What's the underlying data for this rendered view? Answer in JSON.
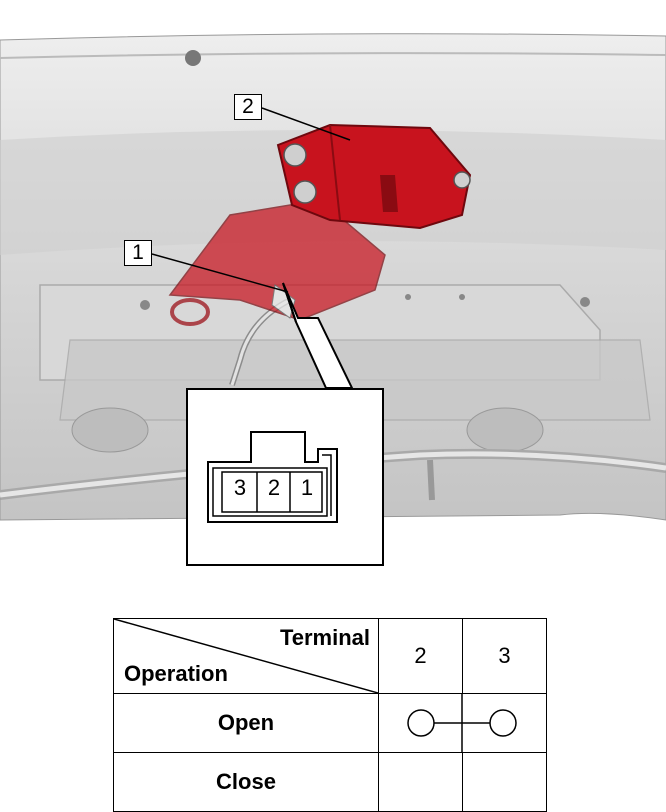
{
  "callouts": [
    {
      "label": "2"
    },
    {
      "label": "1"
    }
  ],
  "connector": {
    "pins": [
      "3",
      "2",
      "1"
    ]
  },
  "table": {
    "header_terminal": "Terminal",
    "header_operation": "Operation",
    "terminals": [
      "2",
      "3"
    ],
    "rows": [
      {
        "operation": "Open",
        "continuity": [
          "2",
          "3"
        ]
      },
      {
        "operation": "Close",
        "continuity": []
      }
    ]
  },
  "colors": {
    "part_red": "#c8131e",
    "body_gray": "#dcdcdc"
  }
}
